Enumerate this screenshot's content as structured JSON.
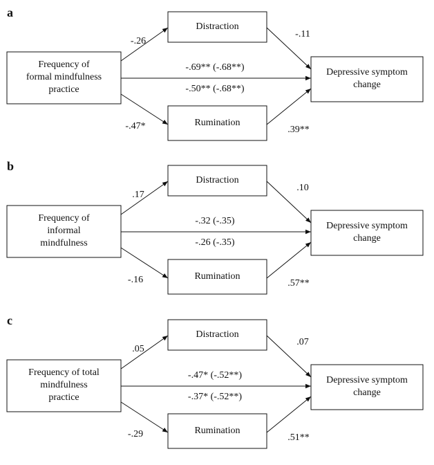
{
  "panels": [
    {
      "label": "a",
      "predictor": [
        "Frequency of",
        "formal mindfulness",
        "practice"
      ],
      "mediator1": "Distraction",
      "mediator2": "Rumination",
      "outcome": [
        "Depressive symptom",
        "change"
      ],
      "edges": {
        "predictor_mediator1": "-.26",
        "mediator1_outcome": "-.11",
        "total": "-.69** (-.68**)",
        "direct": "-.50** (-.68**)",
        "predictor_mediator2": "-.47*",
        "mediator2_outcome": ".39**"
      }
    },
    {
      "label": "b",
      "predictor": [
        "Frequency of",
        "informal",
        "mindfulness"
      ],
      "mediator1": "Distraction",
      "mediator2": "Rumination",
      "outcome": [
        "Depressive symptom",
        "change"
      ],
      "edges": {
        "predictor_mediator1": ".17",
        "mediator1_outcome": ".10",
        "total": "-.32 (-.35)",
        "direct": "-.26 (-.35)",
        "predictor_mediator2": "-.16",
        "mediator2_outcome": ".57**"
      }
    },
    {
      "label": "c",
      "predictor": [
        "Frequency of total",
        "mindfulness",
        "practice"
      ],
      "mediator1": "Distraction",
      "mediator2": "Rumination",
      "outcome": [
        "Depressive symptom",
        "change"
      ],
      "edges": {
        "predictor_mediator1": ".05",
        "mediator1_outcome": ".07",
        "total": "-.47* (-.52**)",
        "direct": "-.37* (-.52**)",
        "predictor_mediator2": "-.29",
        "mediator2_outcome": ".51**"
      }
    }
  ]
}
